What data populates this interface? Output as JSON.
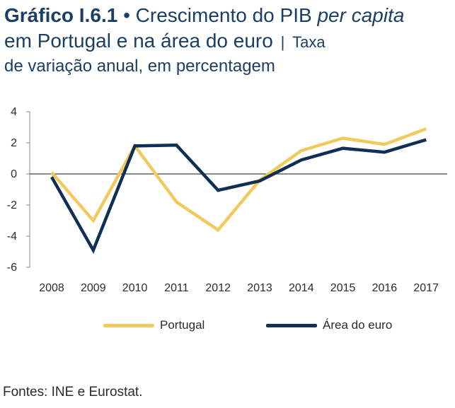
{
  "header": {
    "prefix": "Gráfico I.6.1",
    "bullet": "•",
    "title_part1": "Crescimento do PIB ",
    "title_italic": "per capita",
    "title_line2": "em Portugal e na área do euro",
    "separator": "|",
    "title_line2_small": "Taxa",
    "title_line3": "de variação anual, em percentagem"
  },
  "chart_data": {
    "type": "line",
    "title": "Crescimento do PIB per capita em Portugal e na área do euro | Taxa de variação anual, em percentagem",
    "xlabel": "",
    "ylabel": "",
    "categories": [
      "2008",
      "2009",
      "2010",
      "2011",
      "2012",
      "2013",
      "2014",
      "2015",
      "2016",
      "2017"
    ],
    "ylim": [
      -6,
      4
    ],
    "yticks": [
      4,
      2,
      0,
      -2,
      -4,
      -6
    ],
    "ytick_labels": [
      "4",
      "2",
      "0",
      "-2",
      "-4",
      "-6"
    ],
    "series": [
      {
        "name": "Portugal",
        "color": "#f2c95c",
        "values": [
          0.1,
          -3.0,
          1.8,
          -1.8,
          -3.6,
          -0.4,
          1.5,
          2.3,
          1.9,
          2.9
        ]
      },
      {
        "name": "Área do euro",
        "color": "#0f2f55",
        "values": [
          -0.2,
          -4.9,
          1.8,
          1.85,
          -1.05,
          -0.45,
          0.9,
          1.65,
          1.4,
          2.2
        ]
      }
    ],
    "legend_position": "bottom"
  },
  "legend": {
    "items": [
      {
        "label": "Portugal",
        "color": "#f2c95c"
      },
      {
        "label": "Área do euro",
        "color": "#0f2f55"
      }
    ]
  },
  "footer": {
    "source": "Fontes: INE e Eurostat."
  }
}
